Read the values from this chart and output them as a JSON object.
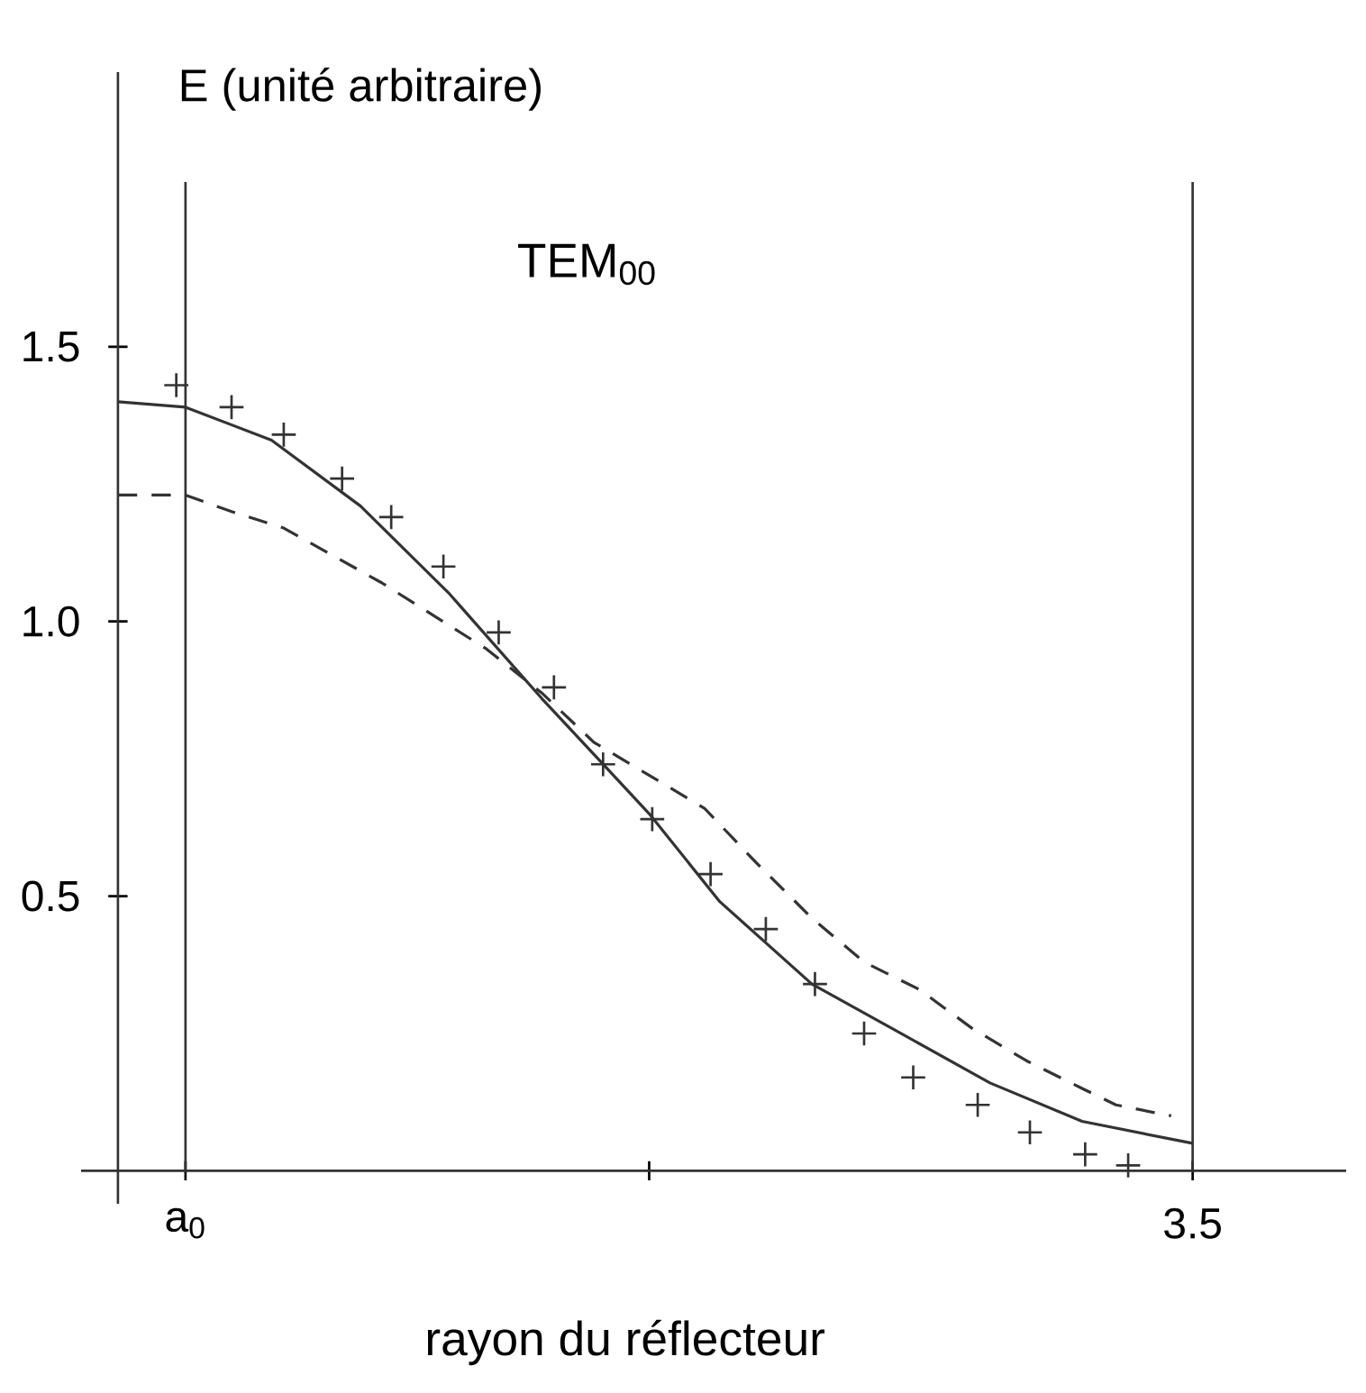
{
  "chart_data": {
    "type": "line",
    "title": "TEM$_{00}$",
    "xlabel": "rayon du réflecteur",
    "ylabel": "E (unité arbitraire)",
    "xlim": [
      -0.12,
      4.0
    ],
    "ylim": [
      -0.06,
      2.0
    ],
    "xticks": [
      {
        "value": 0.22,
        "label": "a$_{0}$"
      },
      {
        "value": 1.73,
        "label": null
      },
      3.5
    ],
    "yticks": [
      0.5,
      {
        "value": 1,
        "label": "1.0"
      },
      1.5
    ],
    "grid": false,
    "ref_lines": [
      {
        "axis": "x",
        "value": 0.22
      },
      {
        "axis": "x",
        "value": 3.5
      }
    ],
    "series": [
      {
        "color": "#333333",
        "line_style": "solid",
        "marker": "none",
        "x": [
          0,
          0.22,
          0.5,
          0.79,
          1.08,
          1.38,
          1.58,
          1.73,
          1.96,
          2.26,
          2.55,
          2.84,
          3.14,
          3.5
        ],
        "values": [
          1.4,
          1.39,
          1.33,
          1.21,
          1.05,
          0.86,
          0.74,
          0.65,
          0.49,
          0.34,
          0.25,
          0.16,
          0.09,
          0.05
        ]
      },
      {
        "color": "#333333",
        "line_style": "dashed",
        "marker": "none",
        "x": [
          0,
          0.22,
          0.37,
          0.54,
          0.7,
          0.86,
          1.03,
          1.2,
          1.38,
          1.55,
          1.73,
          1.91,
          2.08,
          2.26,
          2.43,
          2.61,
          2.78,
          2.96,
          3.14,
          3.25,
          3.43
        ],
        "values": [
          1.23,
          1.23,
          1.2,
          1.17,
          1.12,
          1.07,
          1.01,
          0.95,
          0.87,
          0.78,
          0.72,
          0.66,
          0.56,
          0.46,
          0.38,
          0.33,
          0.26,
          0.2,
          0.15,
          0.12,
          0.1
        ]
      },
      {
        "type": "scatter",
        "color": "#333333",
        "marker": "cross",
        "x": [
          0.19,
          0.37,
          0.54,
          0.73,
          0.89,
          1.06,
          1.24,
          1.42,
          1.58,
          1.74,
          1.93,
          2.11,
          2.27,
          2.43,
          2.59,
          2.8,
          2.97,
          3.15,
          3.29
        ],
        "values": [
          1.43,
          1.39,
          1.34,
          1.26,
          1.19,
          1.1,
          0.98,
          0.88,
          0.74,
          0.64,
          0.54,
          0.44,
          0.34,
          0.25,
          0.17,
          0.12,
          0.07,
          0.03,
          0.01
        ]
      }
    ]
  }
}
